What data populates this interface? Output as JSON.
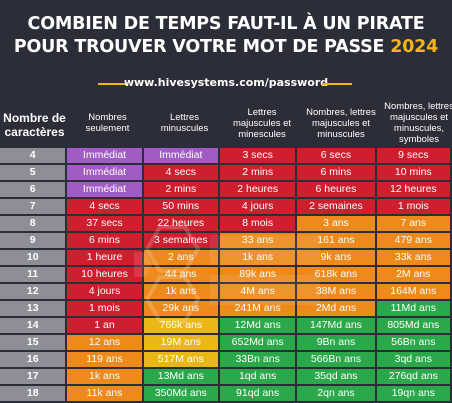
{
  "title": {
    "line1": "COMBIEN DE TEMPS FAUT-IL À UN PIRATE",
    "line2": "POUR TROUVER VOTRE MOT DE PASSE",
    "year": "2024"
  },
  "url": "www.hivesystems.com/password",
  "colors": {
    "background": "#2b2e38",
    "accent": "#f3b512",
    "instant": "#a05bc4",
    "red": "#cf1f2e",
    "orange": "#ee8a1c",
    "yellow": "#e9b716",
    "green": "#2aa84a",
    "header_cell": "#8e8f96"
  },
  "table": {
    "headers": [
      "Nombre de caractères",
      "Nombres seulement",
      "Lettres minuscules",
      "Lettres majuscules et minescules",
      "Nombres, lettres majuscules et minuscules",
      "Nombres, lettres majuscules et minuscules, symboles"
    ],
    "rows": [
      {
        "n": "4",
        "cells": [
          {
            "v": "Immédiat",
            "c": "instant"
          },
          {
            "v": "Immédiat",
            "c": "instant"
          },
          {
            "v": "3 secs",
            "c": "red"
          },
          {
            "v": "6 secs",
            "c": "red"
          },
          {
            "v": "9 secs",
            "c": "red"
          }
        ]
      },
      {
        "n": "5",
        "cells": [
          {
            "v": "Immédiat",
            "c": "instant"
          },
          {
            "v": "4 secs",
            "c": "red"
          },
          {
            "v": "2 mins",
            "c": "red"
          },
          {
            "v": "6 mins",
            "c": "red"
          },
          {
            "v": "10 mins",
            "c": "red"
          }
        ]
      },
      {
        "n": "6",
        "cells": [
          {
            "v": "Immédiat",
            "c": "instant"
          },
          {
            "v": "2 mins",
            "c": "red"
          },
          {
            "v": "2 heures",
            "c": "red"
          },
          {
            "v": "6 heures",
            "c": "red"
          },
          {
            "v": "12 heures",
            "c": "red"
          }
        ]
      },
      {
        "n": "7",
        "cells": [
          {
            "v": "4 secs",
            "c": "red"
          },
          {
            "v": "50 mins",
            "c": "red"
          },
          {
            "v": "4 jours",
            "c": "red"
          },
          {
            "v": "2 semaines",
            "c": "red"
          },
          {
            "v": "1 mois",
            "c": "red"
          }
        ]
      },
      {
        "n": "8",
        "cells": [
          {
            "v": "37 secs",
            "c": "red"
          },
          {
            "v": "22 heures",
            "c": "red"
          },
          {
            "v": "8 mois",
            "c": "red"
          },
          {
            "v": "3 ans",
            "c": "orange"
          },
          {
            "v": "7 ans",
            "c": "orange"
          }
        ]
      },
      {
        "n": "9",
        "cells": [
          {
            "v": "6 mins",
            "c": "red"
          },
          {
            "v": "3 semaines",
            "c": "red"
          },
          {
            "v": "33 ans",
            "c": "orange"
          },
          {
            "v": "161 ans",
            "c": "orange"
          },
          {
            "v": "479 ans",
            "c": "orange"
          }
        ]
      },
      {
        "n": "10",
        "cells": [
          {
            "v": "1 heure",
            "c": "red"
          },
          {
            "v": "2 ans",
            "c": "orange"
          },
          {
            "v": "1k ans",
            "c": "orange"
          },
          {
            "v": "9k ans",
            "c": "orange"
          },
          {
            "v": "33k ans",
            "c": "orange"
          }
        ]
      },
      {
        "n": "11",
        "cells": [
          {
            "v": "10 heures",
            "c": "red"
          },
          {
            "v": "44 ans",
            "c": "orange"
          },
          {
            "v": "89k ans",
            "c": "orange"
          },
          {
            "v": "618k ans",
            "c": "orange"
          },
          {
            "v": "2M ans",
            "c": "orange"
          }
        ]
      },
      {
        "n": "12",
        "cells": [
          {
            "v": "4 jours",
            "c": "red"
          },
          {
            "v": "1k ans",
            "c": "orange"
          },
          {
            "v": "4M ans",
            "c": "orange"
          },
          {
            "v": "38M ans",
            "c": "orange"
          },
          {
            "v": "164M ans",
            "c": "orange"
          }
        ]
      },
      {
        "n": "13",
        "cells": [
          {
            "v": "1 mois",
            "c": "red"
          },
          {
            "v": "29k ans",
            "c": "orange"
          },
          {
            "v": "241M ans",
            "c": "orange"
          },
          {
            "v": "2Md ans",
            "c": "orange"
          },
          {
            "v": "11Md ans",
            "c": "green"
          }
        ]
      },
      {
        "n": "14",
        "cells": [
          {
            "v": "1 an",
            "c": "red"
          },
          {
            "v": "766k ans",
            "c": "yellow"
          },
          {
            "v": "12Md ans",
            "c": "green"
          },
          {
            "v": "147Md ans",
            "c": "green"
          },
          {
            "v": "805Md ans",
            "c": "green"
          }
        ]
      },
      {
        "n": "15",
        "cells": [
          {
            "v": "12 ans",
            "c": "orange"
          },
          {
            "v": "19M ans",
            "c": "yellow"
          },
          {
            "v": "652Md ans",
            "c": "green"
          },
          {
            "v": "9Bn ans",
            "c": "green"
          },
          {
            "v": "56Bn ans",
            "c": "green"
          }
        ]
      },
      {
        "n": "16",
        "cells": [
          {
            "v": "119 ans",
            "c": "orange"
          },
          {
            "v": "517M ans",
            "c": "yellow"
          },
          {
            "v": "33Bn ans",
            "c": "green"
          },
          {
            "v": "566Bn ans",
            "c": "green"
          },
          {
            "v": "3qd ans",
            "c": "green"
          }
        ]
      },
      {
        "n": "17",
        "cells": [
          {
            "v": "1k ans",
            "c": "orange"
          },
          {
            "v": "13Md ans",
            "c": "green"
          },
          {
            "v": "1qd ans",
            "c": "green"
          },
          {
            "v": "35qd ans",
            "c": "green"
          },
          {
            "v": "276qd ans",
            "c": "green"
          }
        ]
      },
      {
        "n": "18",
        "cells": [
          {
            "v": "11k ans",
            "c": "orange"
          },
          {
            "v": "350Md ans",
            "c": "green"
          },
          {
            "v": "91qd ans",
            "c": "green"
          },
          {
            "v": "2qn ans",
            "c": "green"
          },
          {
            "v": "19qn ans",
            "c": "green"
          }
        ]
      }
    ]
  }
}
